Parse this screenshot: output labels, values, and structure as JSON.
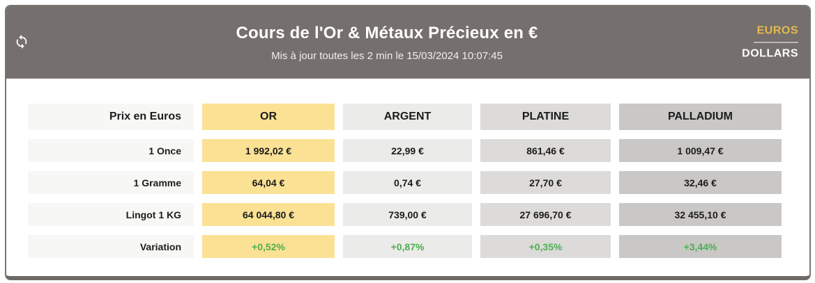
{
  "header": {
    "title": "Cours de l'Or & Métaux Précieux en €",
    "subtitle": "Mis à jour toutes les 2 min le 15/03/2024 10:07:45",
    "refresh_icon": "refresh-sync-icon",
    "currency_toggle": {
      "active": "EUROS",
      "inactive": "DOLLARS"
    }
  },
  "table": {
    "corner_label": "Prix en Euros",
    "columns": [
      "OR",
      "ARGENT",
      "PLATINE",
      "PALLADIUM"
    ],
    "rows": [
      {
        "label": "1 Once",
        "values": [
          "1 992,02 €",
          "22,99 €",
          "861,46 €",
          "1 009,47 €"
        ],
        "is_variation": false
      },
      {
        "label": "1 Gramme",
        "values": [
          "64,04 €",
          "0,74 €",
          "27,70 €",
          "32,46 €"
        ],
        "is_variation": false
      },
      {
        "label": "Lingot 1 KG",
        "values": [
          "64 044,80 €",
          "739,00 €",
          "27 696,70 €",
          "32 455,10 €"
        ],
        "is_variation": false
      },
      {
        "label": "Variation",
        "values": [
          "+0,52%",
          "+0,87%",
          "+0,35%",
          "+3,44%"
        ],
        "is_variation": true
      }
    ]
  },
  "colors": {
    "header_bg": "#756f6d",
    "accent_gold": "#e5bb4d",
    "positive_green": "#4caf50",
    "label_bg": "#f7f7f5",
    "column_bg": [
      "#fbe194",
      "#ebebe9",
      "#dcdbd9",
      "#c9c8c6"
    ]
  }
}
